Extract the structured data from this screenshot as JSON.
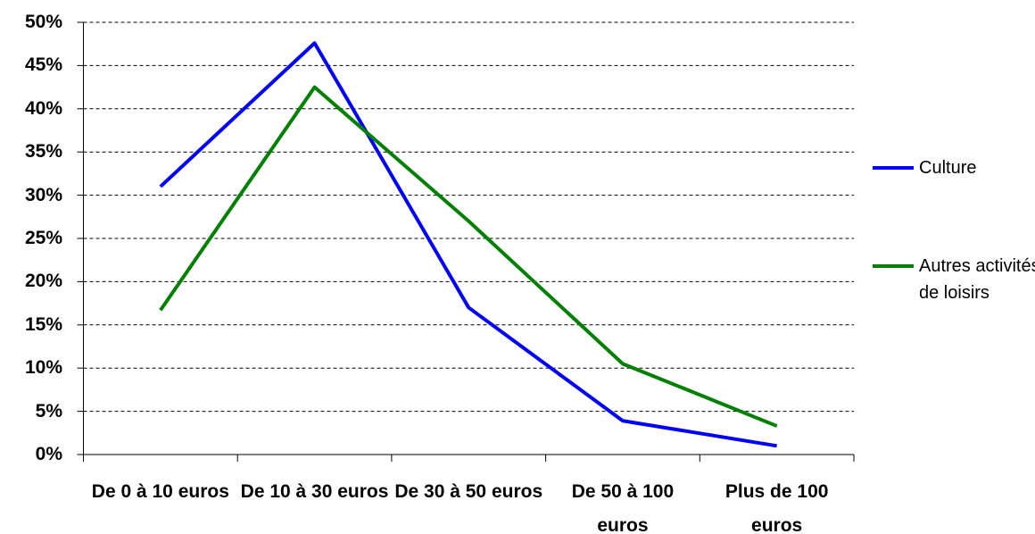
{
  "chart_data": {
    "type": "line",
    "categories": [
      "De 0 à 10 euros",
      "De 10 à 30 euros",
      "De 30 à 50 euros",
      "De 50 à 100 euros",
      "Plus de 100 euros"
    ],
    "series": [
      {
        "name": "Culture",
        "color": "#0000ff",
        "values": [
          31,
          47.6,
          17,
          3.9,
          1
        ]
      },
      {
        "name": "Autres activités de loisirs",
        "color": "#008000",
        "values": [
          16.7,
          42.5,
          27,
          10.5,
          3.3
        ]
      }
    ],
    "ylim": [
      0,
      50
    ],
    "yticks": [
      {
        "value": 0,
        "label": "0%"
      },
      {
        "value": 5,
        "label": "5%"
      },
      {
        "value": 10,
        "label": "10%"
      },
      {
        "value": 15,
        "label": "15%"
      },
      {
        "value": 20,
        "label": "20%"
      },
      {
        "value": 25,
        "label": "25%"
      },
      {
        "value": 30,
        "label": "30%"
      },
      {
        "value": 35,
        "label": "35%"
      },
      {
        "value": 40,
        "label": "40%"
      },
      {
        "value": 45,
        "label": "45%"
      },
      {
        "value": 50,
        "label": "50%"
      }
    ],
    "grid": true,
    "legend": "right"
  }
}
